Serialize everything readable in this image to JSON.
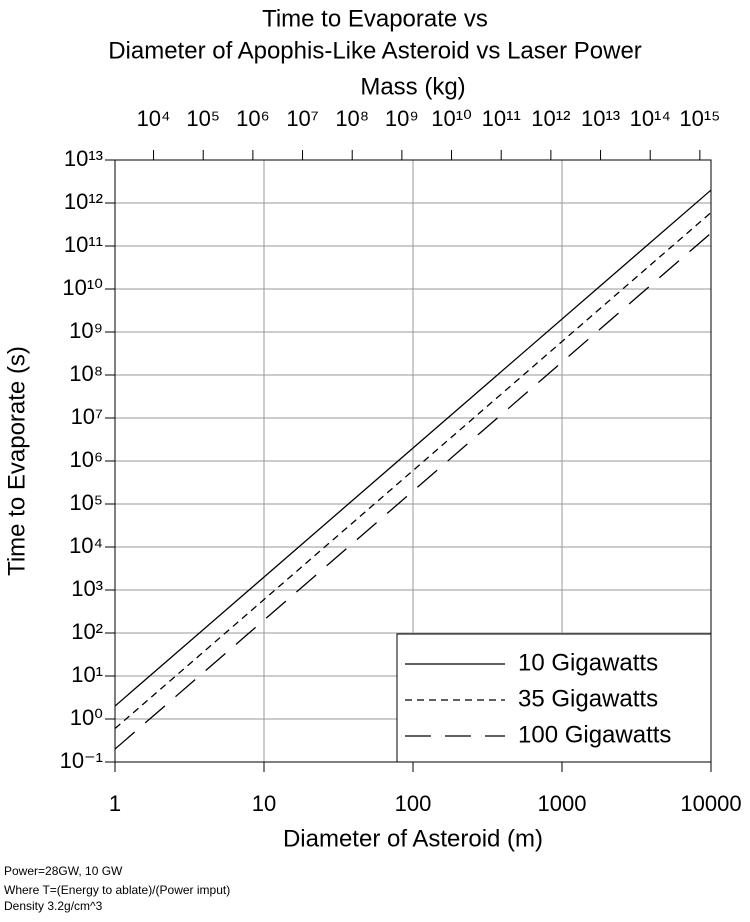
{
  "chart_data": {
    "type": "line",
    "title": [
      "Time to Evaporate vs",
      "Diameter of Apophis-Like Asteroid vs Laser Power"
    ],
    "x_label": "Diameter of Asteroid (m)",
    "y_label": "Time to Evaporate (s)",
    "x2_label": "Mass (kg)",
    "log_x": true,
    "log_y": true,
    "grid": true,
    "legend": "lower right",
    "xlim": [
      1,
      10000
    ],
    "xticks": [
      1,
      10,
      100,
      1000,
      10000
    ],
    "x2lim": [
      1675,
      1675000000000000.0
    ],
    "x2ticks": [
      {
        "value": 10000.0,
        "label": "10⁴"
      },
      {
        "value": 100000.0,
        "label": "10⁵"
      },
      {
        "value": 1000000.0,
        "label": "10⁶"
      },
      {
        "value": 10000000.0,
        "label": "10⁷"
      },
      {
        "value": 100000000.0,
        "label": "10⁸"
      },
      {
        "value": 1000000000.0,
        "label": "10⁹"
      },
      {
        "value": 10000000000.0,
        "label": "10¹⁰"
      },
      {
        "value": 100000000000.0,
        "label": "10¹¹"
      },
      {
        "value": 1000000000000.0,
        "label": "10¹²"
      },
      {
        "value": 10000000000000.0,
        "label": "10¹³"
      },
      {
        "value": 100000000000000.0,
        "label": "10¹⁴"
      },
      {
        "value": 1000000000000000.0,
        "label": "10¹⁵"
      }
    ],
    "ylim": [
      0.1,
      10000000000000.0
    ],
    "yticks": [
      {
        "value": 0.1,
        "label": "10⁻¹"
      },
      {
        "value": 1,
        "label": "10⁰"
      },
      {
        "value": 10,
        "label": "10¹"
      },
      {
        "value": 100,
        "label": "10²"
      },
      {
        "value": 1000,
        "label": "10³"
      },
      {
        "value": 10000.0,
        "label": "10⁴"
      },
      {
        "value": 100000.0,
        "label": "10⁵"
      },
      {
        "value": 1000000.0,
        "label": "10⁶"
      },
      {
        "value": 10000000.0,
        "label": "10⁷"
      },
      {
        "value": 100000000.0,
        "label": "10⁸"
      },
      {
        "value": 1000000000.0,
        "label": "10⁹"
      },
      {
        "value": 10000000000.0,
        "label": "10¹⁰"
      },
      {
        "value": 100000000000.0,
        "label": "10¹¹"
      },
      {
        "value": 1000000000000.0,
        "label": "10¹²"
      },
      {
        "value": 10000000000000.0,
        "label": "10¹³"
      }
    ],
    "x": [
      1,
      10000
    ],
    "series": [
      {
        "name": "10 Gigawatts",
        "color": "#000000",
        "dash": "solid",
        "values": [
          2,
          2000000000000.0
        ]
      },
      {
        "name": "35 Gigawatts",
        "color": "#000000",
        "dash": "dashed",
        "values": [
          0.6,
          600000000000.0
        ]
      },
      {
        "name": "100 Gigawatts",
        "color": "#000000",
        "dash": "longdash",
        "values": [
          0.2,
          200000000000.0
        ]
      }
    ]
  },
  "notes": [
    "Power=28GW, 10 GW",
    "Where T=(Energy to ablate)/(Power imput)",
    "Density 3.2g/cm^3"
  ]
}
